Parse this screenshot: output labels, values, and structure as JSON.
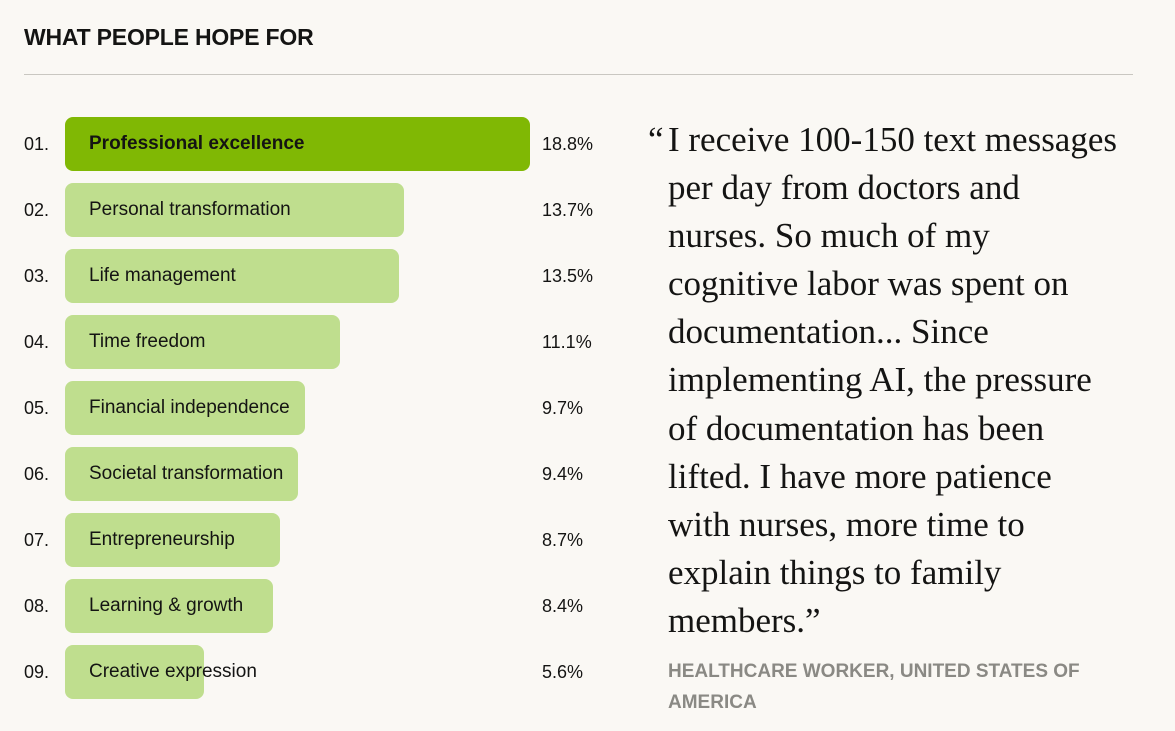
{
  "title": "WHAT PEOPLE HOPE FOR",
  "chart_data": {
    "type": "bar",
    "orientation": "horizontal",
    "title": "WHAT PEOPLE HOPE FOR",
    "ranks": [
      "01.",
      "02.",
      "03.",
      "04.",
      "05.",
      "06.",
      "07.",
      "08.",
      "09."
    ],
    "categories": [
      "Professional excellence",
      "Personal transformation",
      "Life management",
      "Time freedom",
      "Financial independence",
      "Societal transformation",
      "Entrepreneurship",
      "Learning & growth",
      "Creative expression"
    ],
    "values": [
      18.8,
      13.7,
      13.5,
      11.1,
      9.7,
      9.4,
      8.7,
      8.4,
      5.6
    ],
    "value_labels": [
      "18.8%",
      "13.7%",
      "13.5%",
      "11.1%",
      "9.7%",
      "9.4%",
      "8.7%",
      "8.4%",
      "5.6%"
    ],
    "unit": "%",
    "colors": {
      "highlight": "#80b804",
      "default": "#bfde8e"
    }
  },
  "quote": {
    "open_mark": "“",
    "lines": [
      "I receive 100-150 text messages",
      "per day from doctors and",
      "nurses. So much of my",
      "cognitive labor was spent on",
      "documentation... Since",
      "implementing AI, the pressure",
      "of documentation has been",
      "lifted. I have more patience",
      "with nurses, more time to",
      "explain things to family",
      "members.”"
    ],
    "attribution": "HEALTHCARE WORKER, UNITED STATES OF AMERICA"
  }
}
